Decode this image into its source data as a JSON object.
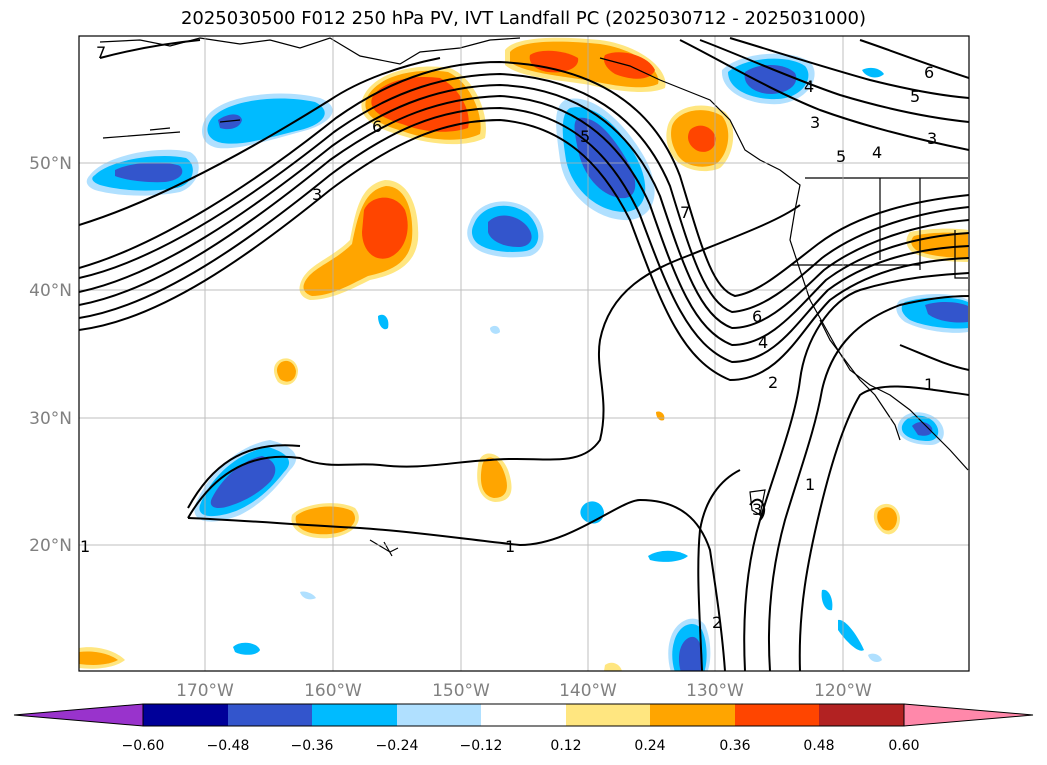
{
  "title": "2025030500 F012 250 hPa PV, IVT Landfall PC (2025030712 - 2025031000)",
  "map": {
    "lat_labels": [
      "50°N",
      "40°N",
      "30°N",
      "20°N"
    ],
    "lon_labels": [
      "170°W",
      "160°W",
      "150°W",
      "140°W",
      "130°W",
      "120°W"
    ],
    "extent": {
      "lon": [
        -180,
        -110
      ],
      "lat": [
        10,
        60
      ]
    },
    "contour_labels": [
      "7",
      "6",
      "3",
      "5",
      "7",
      "6",
      "4",
      "2",
      "1",
      "3",
      "1",
      "2",
      "1",
      "4",
      "3",
      "5",
      "4",
      "3",
      "6",
      "5",
      "1"
    ]
  },
  "colorbar": {
    "ticks": [
      "−0.60",
      "−0.48",
      "−0.36",
      "−0.24",
      "−0.12",
      "0.12",
      "0.24",
      "0.36",
      "0.48",
      "0.60"
    ],
    "colors": [
      "#9933cc",
      "#000099",
      "#3355cc",
      "#00bbff",
      "#b0e0ff",
      "#ffffff",
      "#ffe680",
      "#ffa500",
      "#ff4500",
      "#b22222",
      "#ff88aa"
    ]
  }
}
